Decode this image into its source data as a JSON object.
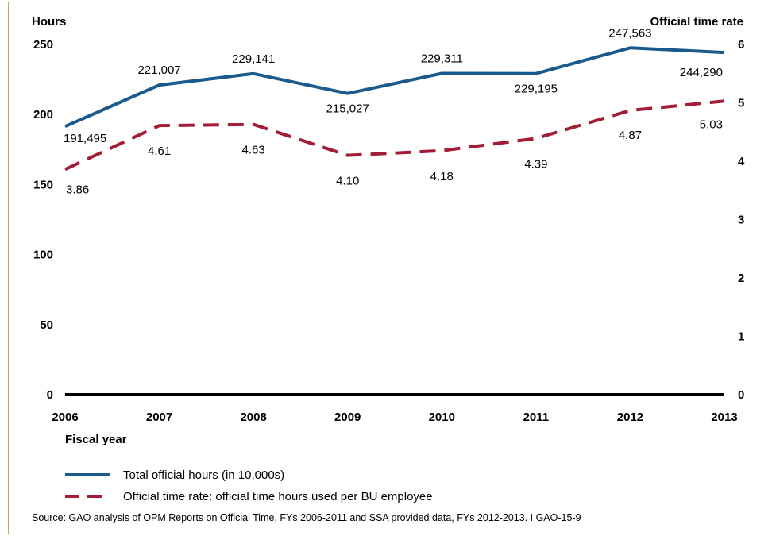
{
  "chart_data": {
    "type": "line",
    "y_left_label": "Hours",
    "y_right_label": "Official time rate",
    "xlabel": "Fiscal year",
    "categories": [
      "2006",
      "2007",
      "2008",
      "2009",
      "2010",
      "2011",
      "2012",
      "2013"
    ],
    "y_left_ticks": [
      0,
      50,
      100,
      150,
      200,
      250
    ],
    "y_right_ticks": [
      0,
      1,
      2,
      3,
      4,
      5,
      6
    ],
    "ylim_left": [
      0,
      250
    ],
    "ylim_right": [
      0,
      6
    ],
    "series": [
      {
        "name": "Total official hours (in 10,000s)",
        "axis": "left",
        "style": "solid",
        "color": "#1a5a8c",
        "values": [
          191.495,
          221.007,
          229.141,
          215.027,
          229.311,
          229.195,
          247.563,
          244.29
        ],
        "labels": [
          "191,495",
          "221,007",
          "229,141",
          "215,027",
          "229,311",
          "229,195",
          "247,563",
          "244,290"
        ]
      },
      {
        "name": "Official time rate: official time hours used per BU employee",
        "axis": "right",
        "style": "dashed",
        "color": "#a31d36",
        "values": [
          3.86,
          4.61,
          4.63,
          4.1,
          4.18,
          4.39,
          4.87,
          5.03
        ],
        "labels": [
          "3.86",
          "4.61",
          "4.63",
          "4.10",
          "4.18",
          "4.39",
          "4.87",
          "5.03"
        ]
      }
    ],
    "source": "Source: GAO analysis of OPM Reports on Official Time, FYs 2006-2011 and SSA provided data, FYs 2012-2013. I GAO-15-9",
    "legend_position": "bottom-left"
  }
}
